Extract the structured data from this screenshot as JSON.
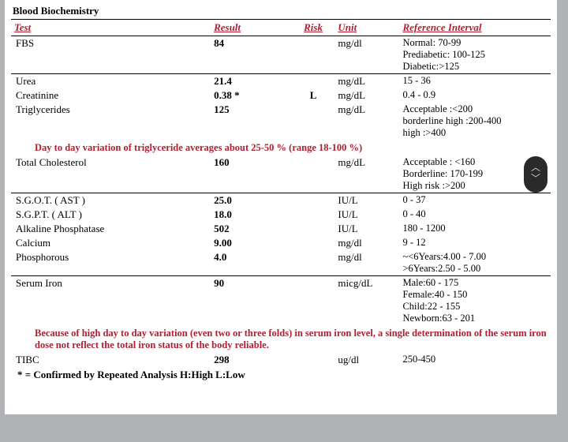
{
  "title": "Blood Biochemistry",
  "columns": {
    "test": "Test",
    "result": "Result",
    "risk": "Risk",
    "unit": "Unit",
    "ref": "Reference Interval"
  },
  "rows": [
    {
      "kind": "data",
      "sep": false,
      "test": "FBS",
      "result": "84",
      "risk": "",
      "unit": "mg/dl",
      "ref": "Normal: 70-99\nPrediabetic: 100-125\nDiabetic:>125"
    },
    {
      "kind": "data",
      "sep": true,
      "test": "Urea",
      "result": "21.4",
      "risk": "",
      "unit": "mg/dL",
      "ref": "15 - 36"
    },
    {
      "kind": "data",
      "sep": false,
      "test": "Creatinine",
      "result": "0.38 *",
      "risk": "L",
      "unit": "mg/dL",
      "ref": "0.4 - 0.9"
    },
    {
      "kind": "data",
      "sep": false,
      "test": "Triglycerides",
      "result": "125",
      "risk": "",
      "unit": "mg/dL",
      "ref": "Acceptable :<200\nborderline high :200-400\nhigh :>400"
    },
    {
      "kind": "note",
      "text": "Day to day variation of triglyceride averages about 25-50 % (range 18-100 %)"
    },
    {
      "kind": "data",
      "sep": false,
      "test": "Total Cholesterol",
      "result": "160",
      "risk": "",
      "unit": "mg/dL",
      "ref": "Acceptable  : <160\nBorderline: 170-199\nHigh risk  :>200"
    },
    {
      "kind": "data",
      "sep": true,
      "test": "S.G.O.T. ( AST )",
      "result": "25.0",
      "risk": "",
      "unit": "IU/L",
      "ref": "0 - 37"
    },
    {
      "kind": "data",
      "sep": false,
      "test": "S.G.P.T. ( ALT )",
      "result": "18.0",
      "risk": "",
      "unit": "IU/L",
      "ref": "0 - 40"
    },
    {
      "kind": "data",
      "sep": false,
      "test": "Alkaline Phosphatase",
      "result": "502",
      "risk": "",
      "unit": "IU/L",
      "ref": "180 - 1200"
    },
    {
      "kind": "data",
      "sep": false,
      "test": "Calcium",
      "result": "9.00",
      "risk": "",
      "unit": "mg/dl",
      "ref": "9 - 12"
    },
    {
      "kind": "data",
      "sep": false,
      "test": "Phosphorous",
      "result": "4.0",
      "risk": "",
      "unit": "mg/dl",
      "ref": "~<6Years:4.00 - 7.00\n>6Years:2.50 - 5.00"
    },
    {
      "kind": "data",
      "sep": true,
      "test": "Serum Iron",
      "result": "90",
      "risk": "",
      "unit": "micg/dL",
      "ref": "Male:60 - 175\nFemale:40 - 150\nChild:22 - 155\nNewborn:63 - 201"
    },
    {
      "kind": "note",
      "text": "Because of high day to day variation (even two or three folds) in serum iron level, a single determination of the serum iron dose not reflect the total iron status of the body reliable."
    },
    {
      "kind": "data",
      "sep": false,
      "test": "TIBC",
      "result": "298",
      "risk": "",
      "unit": "ug/dl",
      "ref": "250-450"
    }
  ],
  "footnote": "* = Confirmed by Repeated Analysis H:High L:Low"
}
